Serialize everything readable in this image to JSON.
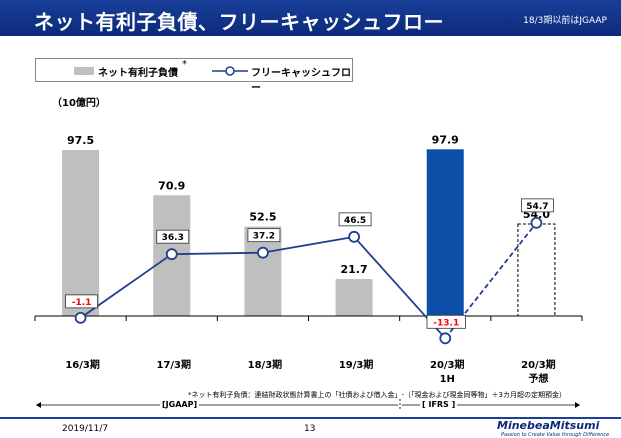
{
  "header": {
    "title": "ネット有利子負債、フリーキャッシュフロー",
    "note": "18/3期以前はJGAAP"
  },
  "legend": {
    "bar_label": "ネット有利子負債",
    "star": "*",
    "line_label": "フリーキャッシュフロー"
  },
  "unit_label": "（10億円）",
  "colors": {
    "header": "#1a3f9a",
    "bar": "#bfbfbf",
    "bar_highlight": "#0b4fa8",
    "line": "#1f3f8f",
    "negative_label": "#ff0000"
  },
  "chart_data": {
    "type": "bar+line",
    "categories": [
      "16/3期",
      "17/3期",
      "18/3期",
      "19/3期",
      "20/3期\n1H",
      "20/3期\n予想"
    ],
    "series": [
      {
        "name": "ネット有利子負債",
        "values": [
          97.5,
          70.9,
          52.5,
          21.7,
          97.9,
          54.0
        ],
        "value_labels": [
          "97.5",
          "70.9",
          "52.5",
          "21.7",
          "97.9",
          "54.0"
        ],
        "styles": [
          "solid",
          "solid",
          "solid",
          "solid",
          "highlight",
          "dashed-outline"
        ]
      },
      {
        "name": "フリーキャッシュフロー",
        "values": [
          -1.1,
          36.3,
          37.2,
          46.5,
          -13.1,
          54.7
        ],
        "value_labels": [
          "-1.1",
          "36.3",
          "37.2",
          "46.5",
          "-13.1",
          "54.7"
        ],
        "styles": [
          "solid",
          "solid",
          "solid",
          "solid",
          "solid",
          "dashed"
        ]
      }
    ],
    "ylim": [
      -15,
      105
    ]
  },
  "footnote": "*ネット有利子負債：連結財政状態計算書上の「社債および借入金」‐（「現金および現金同等物」＋3カ月超の定期預金）",
  "eras": {
    "jgaap": "[JGAAP]",
    "ifrs": "[ IFRS ]"
  },
  "footer": {
    "date": "2019/11/7",
    "page": "13",
    "logo": "MinebeaMitsumi",
    "tagline": "Passion to Create Value through Difference"
  }
}
